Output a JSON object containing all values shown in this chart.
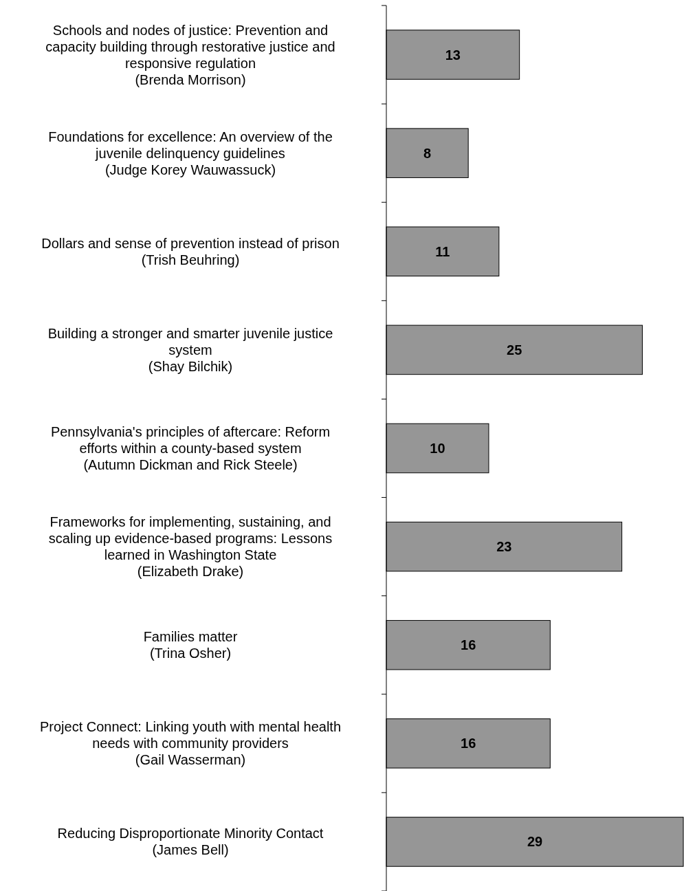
{
  "chart_data": {
    "type": "bar",
    "orientation": "horizontal",
    "categories": [
      "Schools and nodes of justice: Prevention and\ncapacity building through restorative justice and\nresponsive regulation\n(Brenda Morrison)",
      "Foundations for excellence: An overview of the\njuvenile delinquency guidelines\n(Judge Korey Wauwassuck)",
      "Dollars and sense of prevention instead of prison\n(Trish Beuhring)",
      "Building a stronger and smarter juvenile justice\nsystem\n(Shay Bilchik)",
      "Pennsylvania's principles of aftercare: Reform\nefforts within a county-based system\n(Autumn Dickman and Rick Steele)",
      "Frameworks for implementing, sustaining, and\nscaling up evidence-based programs: Lessons\nlearned in Washington State\n(Elizabeth Drake)",
      "Families matter\n(Trina Osher)",
      "Project Connect: Linking youth with mental health\nneeds with community providers\n(Gail Wasserman)",
      "Reducing Disproportionate Minority Contact\n(James Bell)"
    ],
    "values": [
      13,
      8,
      11,
      25,
      10,
      23,
      16,
      16,
      29
    ],
    "color": "#969696",
    "data_labels": true
  }
}
